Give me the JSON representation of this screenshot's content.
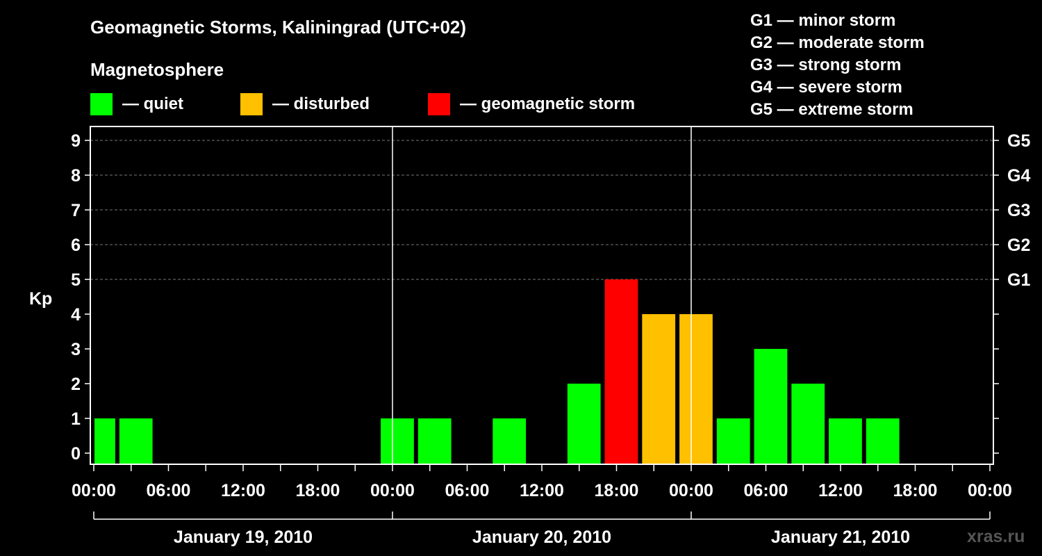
{
  "chart_data": {
    "type": "bar",
    "title": "Geomagnetic Storms, Kaliningrad (UTC+02)",
    "legend_title": "Magnetosphere",
    "legend": [
      {
        "label": "— quiet",
        "color": "#00ff00"
      },
      {
        "label": "— disturbed",
        "color": "#ffc000"
      },
      {
        "label": "— geomagnetic storm",
        "color": "#ff0000"
      }
    ],
    "storm_scale": [
      "G1 — minor storm",
      "G2 — moderate storm",
      "G3 — strong storm",
      "G4 — severe storm",
      "G5 — extreme storm"
    ],
    "ylabel": "Kp",
    "ylim": [
      0,
      9
    ],
    "yticks": [
      "0",
      "1",
      "2",
      "3",
      "4",
      "5",
      "6",
      "7",
      "8",
      "9"
    ],
    "right_ticks": [
      {
        "kp": 5,
        "label": "G1"
      },
      {
        "kp": 6,
        "label": "G2"
      },
      {
        "kp": 7,
        "label": "G3"
      },
      {
        "kp": 8,
        "label": "G4"
      },
      {
        "kp": 9,
        "label": "G5"
      }
    ],
    "grid": true,
    "xlim_hours": [
      0,
      72
    ],
    "xticks": [
      {
        "hour": 0,
        "label": "00:00"
      },
      {
        "hour": 6,
        "label": "06:00"
      },
      {
        "hour": 12,
        "label": "12:00"
      },
      {
        "hour": 18,
        "label": "18:00"
      },
      {
        "hour": 24,
        "label": "00:00"
      },
      {
        "hour": 30,
        "label": "06:00"
      },
      {
        "hour": 36,
        "label": "12:00"
      },
      {
        "hour": 42,
        "label": "18:00"
      },
      {
        "hour": 48,
        "label": "00:00"
      },
      {
        "hour": 54,
        "label": "06:00"
      },
      {
        "hour": 60,
        "label": "12:00"
      },
      {
        "hour": 66,
        "label": "18:00"
      },
      {
        "hour": 72,
        "label": "00:00"
      }
    ],
    "days": [
      {
        "label": "January 19, 2010",
        "start": 0,
        "end": 24
      },
      {
        "label": "January 20, 2010",
        "start": 24,
        "end": 48
      },
      {
        "label": "January 21, 2010",
        "start": 48,
        "end": 72
      }
    ],
    "bars": [
      {
        "start": 0,
        "end": 2,
        "kp": 1,
        "level": "quiet"
      },
      {
        "start": 2,
        "end": 5,
        "kp": 1,
        "level": "quiet"
      },
      {
        "start": 23,
        "end": 26,
        "kp": 1,
        "level": "quiet"
      },
      {
        "start": 26,
        "end": 29,
        "kp": 1,
        "level": "quiet"
      },
      {
        "start": 32,
        "end": 35,
        "kp": 1,
        "level": "quiet"
      },
      {
        "start": 38,
        "end": 41,
        "kp": 2,
        "level": "quiet"
      },
      {
        "start": 41,
        "end": 44,
        "kp": 5,
        "level": "storm"
      },
      {
        "start": 44,
        "end": 47,
        "kp": 4,
        "level": "disturbed"
      },
      {
        "start": 47,
        "end": 50,
        "kp": 4,
        "level": "disturbed"
      },
      {
        "start": 50,
        "end": 53,
        "kp": 1,
        "level": "quiet"
      },
      {
        "start": 53,
        "end": 56,
        "kp": 3,
        "level": "quiet"
      },
      {
        "start": 56,
        "end": 59,
        "kp": 2,
        "level": "quiet"
      },
      {
        "start": 59,
        "end": 62,
        "kp": 1,
        "level": "quiet"
      },
      {
        "start": 62,
        "end": 65,
        "kp": 1,
        "level": "quiet"
      }
    ],
    "level_colors": {
      "quiet": "#00ff00",
      "disturbed": "#ffc000",
      "storm": "#ff0000"
    }
  },
  "watermark": "xras.ru"
}
